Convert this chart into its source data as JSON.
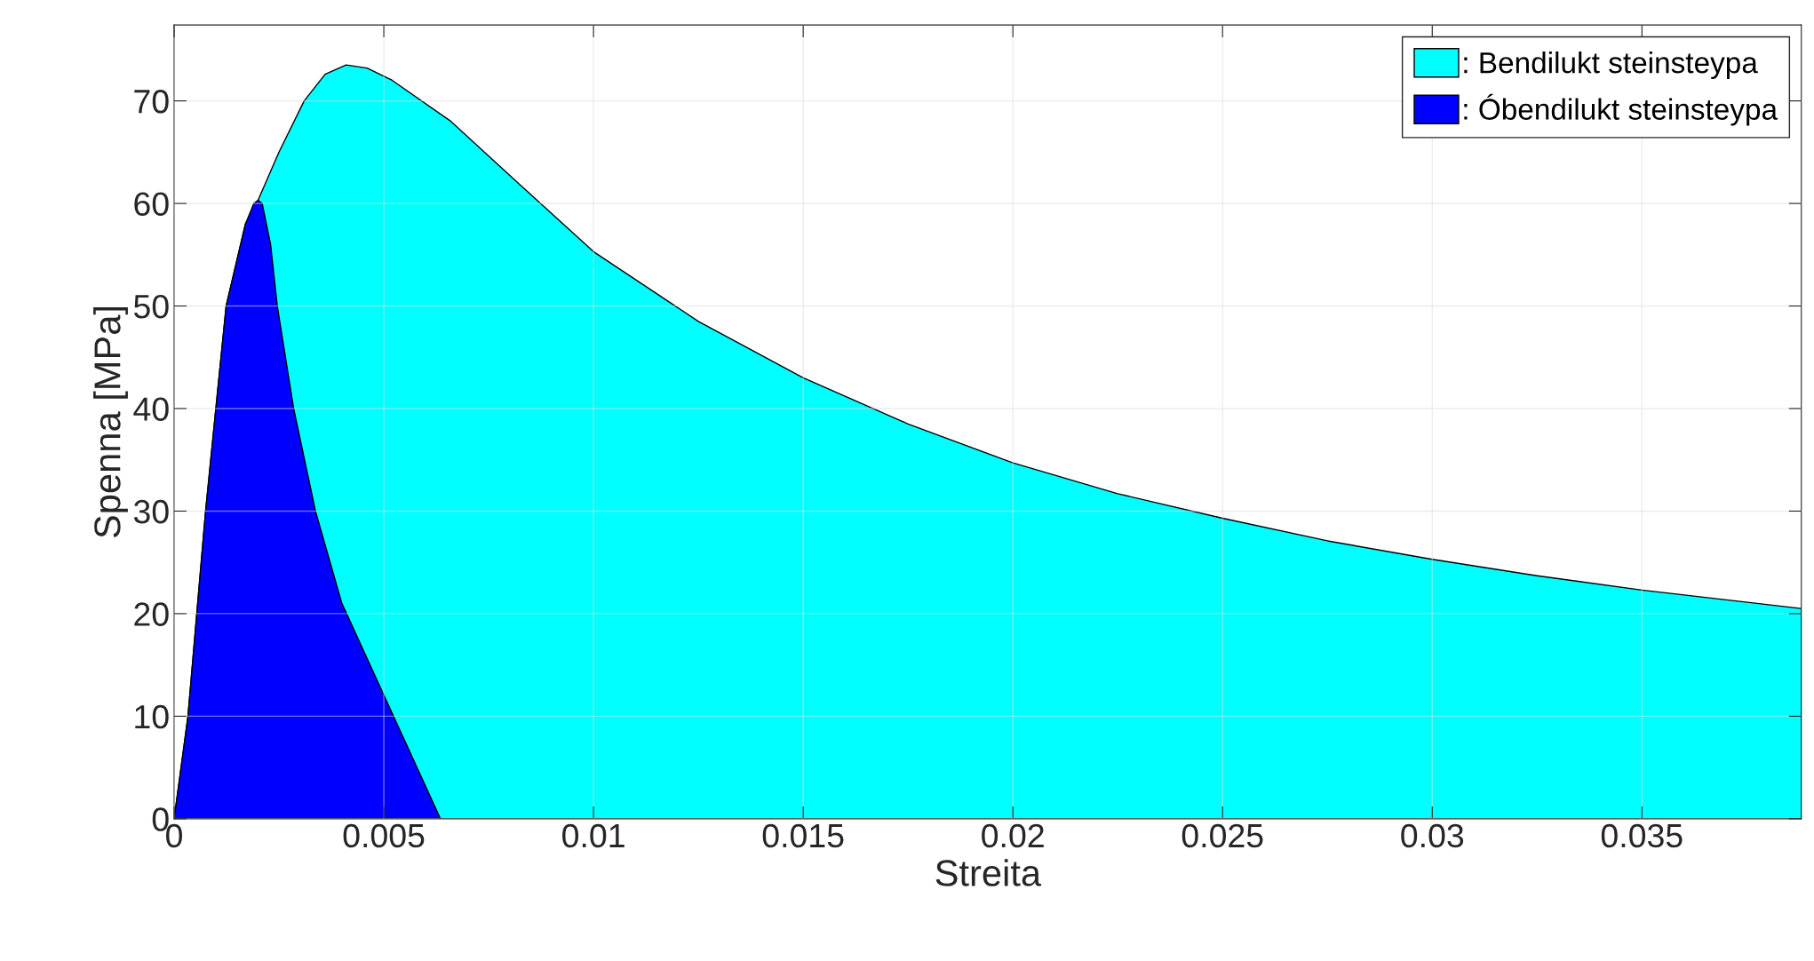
{
  "chart_data": {
    "type": "area",
    "xlabel": "Streita",
    "ylabel": "Spenna [MPa]",
    "xlim": [
      0,
      0.0388
    ],
    "ylim": [
      0,
      77.4
    ],
    "xticks": [
      0,
      0.005,
      0.01,
      0.015,
      0.02,
      0.025,
      0.03,
      0.035
    ],
    "yticks": [
      0,
      10,
      20,
      30,
      40,
      50,
      60,
      70
    ],
    "grid": true,
    "legend": "top right",
    "series": [
      {
        "name": ": Bendilukt steinsteypa",
        "color": "#00ffff",
        "x": [
          0,
          0.00033,
          0.00075,
          0.00124,
          0.0017,
          0.002,
          0.0025,
          0.0031,
          0.0036,
          0.0041,
          0.0046,
          0.0052,
          0.0066,
          0.0082,
          0.01,
          0.0125,
          0.015,
          0.0175,
          0.02,
          0.0225,
          0.025,
          0.0275,
          0.03,
          0.0325,
          0.035,
          0.0388
        ],
        "values": [
          0,
          10,
          30,
          50,
          58,
          60.3,
          65,
          70,
          72.6,
          73.5,
          73.2,
          72,
          68,
          62,
          55.3,
          48.5,
          43,
          38.5,
          34.7,
          31.7,
          29.3,
          27.1,
          25.3,
          23.7,
          22.3,
          20.5
        ]
      },
      {
        "name": ": Óbendilukt steinsteypa",
        "color": "#0000ff",
        "x": [
          0,
          0.00033,
          0.00075,
          0.00124,
          0.0017,
          0.0019,
          0.002,
          0.0021,
          0.0023,
          0.00246,
          0.00285,
          0.00337,
          0.004,
          0.00635
        ],
        "values": [
          0,
          10,
          30,
          50,
          58,
          60,
          60.3,
          60,
          56,
          50,
          40,
          30,
          21,
          0
        ]
      }
    ]
  }
}
